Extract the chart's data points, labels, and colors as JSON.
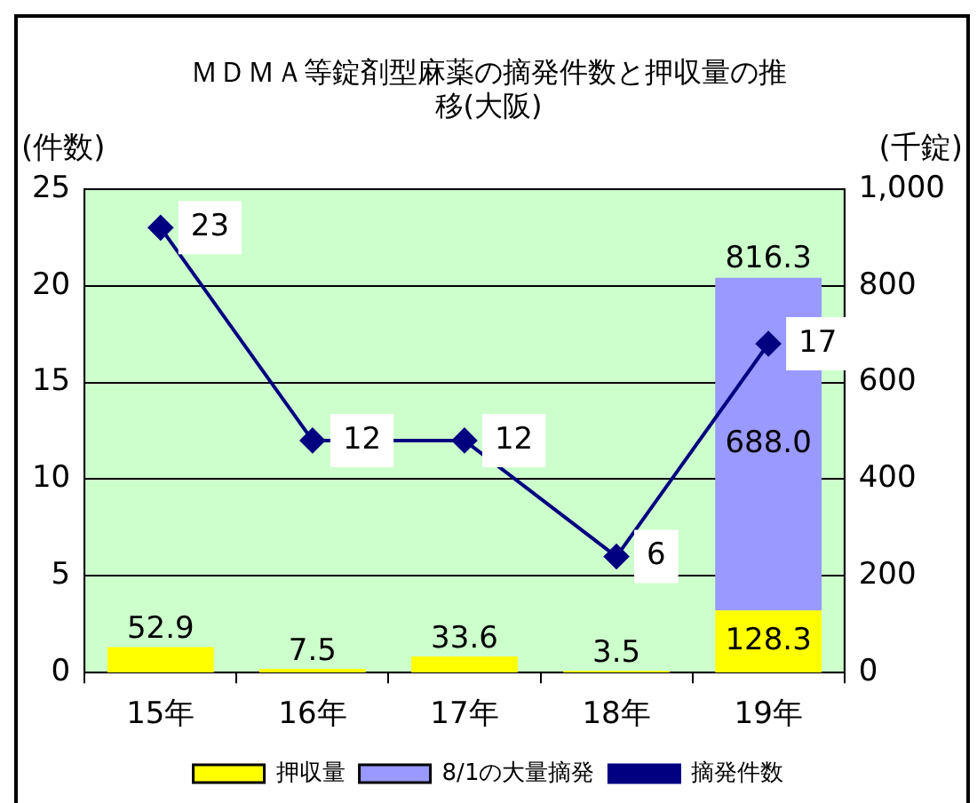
{
  "chart_data": {
    "type": "bar",
    "title": "ＭＤＭＡ等錠剤型麻薬の摘発件数と押収量の推移(大阪)",
    "ylabel": "(件数)",
    "y2label": "(千錠)",
    "categories": [
      "15年",
      "16年",
      "17年",
      "18年",
      "19年"
    ],
    "stacked": true,
    "series": [
      {
        "name": "押収量",
        "axis": "y2",
        "color": "#ffff00",
        "values": [
          52.9,
          7.5,
          33.6,
          3.5,
          128.3
        ]
      },
      {
        "name": "8/1の大量摘発",
        "axis": "y2",
        "color": "#9999ff",
        "values": [
          null,
          null,
          null,
          null,
          688.0
        ],
        "value_labels": [
          null,
          null,
          null,
          null,
          "688.0"
        ]
      },
      {
        "name": "摘発件数",
        "type": "line",
        "axis": "y",
        "color": "#000080",
        "values": [
          23,
          12,
          12,
          6,
          17
        ]
      }
    ],
    "ylim": [
      0,
      25
    ],
    "yticks": [
      0,
      5,
      10,
      15,
      20,
      25
    ],
    "y2lim": [
      0,
      1000
    ],
    "y2ticks": [
      0,
      200,
      400,
      600,
      800,
      {
        "value": 1000,
        "label": "1,000"
      }
    ],
    "totals": [
      null,
      null,
      null,
      null,
      "816.3"
    ],
    "data_labels": true,
    "grid": "y",
    "legend": "bottom",
    "marker": "diamond",
    "line_style": "solid"
  }
}
